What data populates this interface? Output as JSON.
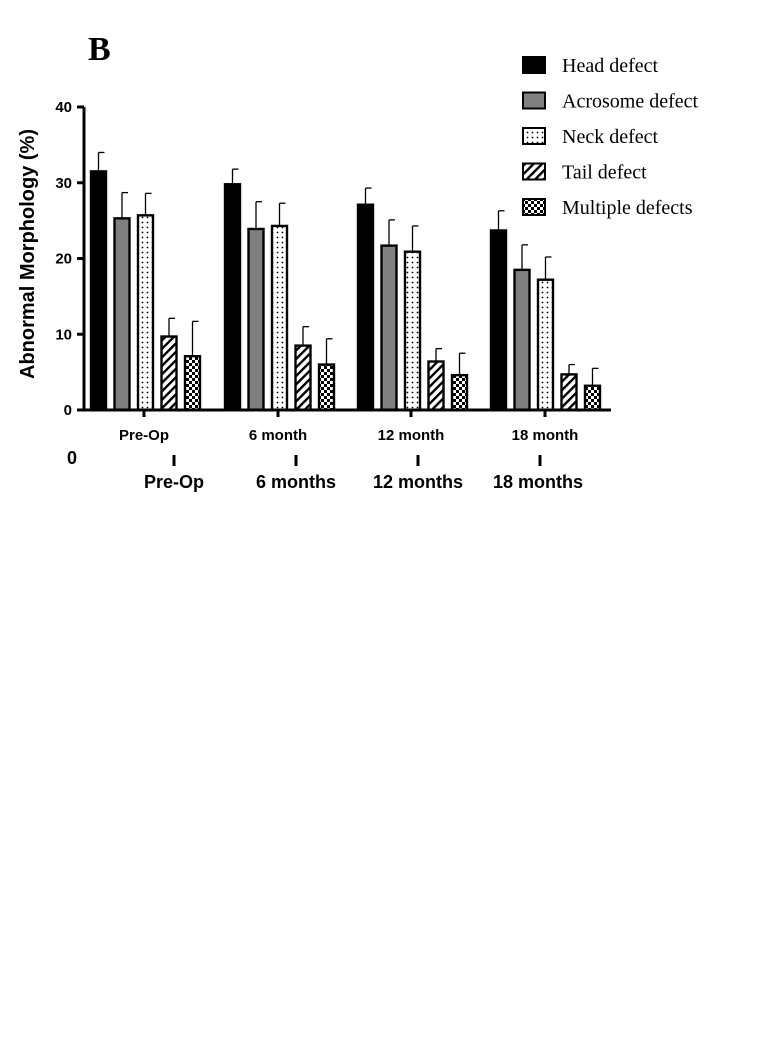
{
  "panel_label": "B",
  "colors": {
    "head": "#000000",
    "acrosome": "#808080",
    "outline": "#000000",
    "background": "#ffffff"
  },
  "secondary_axis": {
    "partial_tick_label": "0",
    "labels": [
      "Pre-Op",
      "6 months",
      "12 months",
      "18 months"
    ]
  },
  "chart_data": {
    "type": "bar",
    "title": "",
    "xlabel": "",
    "ylabel": "Abnormal Morphology (%)",
    "ylim": [
      0,
      40
    ],
    "yticks": [
      "0",
      "10",
      "20",
      "30",
      "40"
    ],
    "categories": [
      "Pre-Op",
      "6 month",
      "12 month",
      "18 month"
    ],
    "legend_position": "top-right",
    "series": [
      {
        "name": "Head defect",
        "pattern": "solid-black",
        "values": [
          31.5,
          29.8,
          27.1,
          23.7
        ],
        "errors": [
          2.5,
          2.0,
          2.2,
          2.6
        ]
      },
      {
        "name": "Acrosome defect",
        "pattern": "solid-gray",
        "values": [
          25.3,
          23.9,
          21.7,
          18.5
        ],
        "errors": [
          3.4,
          3.6,
          3.4,
          3.3
        ]
      },
      {
        "name": "Neck defect",
        "pattern": "dots",
        "values": [
          25.7,
          24.3,
          20.9,
          17.2
        ],
        "errors": [
          2.9,
          3.0,
          3.4,
          3.0
        ]
      },
      {
        "name": "Tail defect",
        "pattern": "diagonal-stripes",
        "values": [
          9.7,
          8.5,
          6.4,
          4.7
        ],
        "errors": [
          2.4,
          2.5,
          1.7,
          1.3
        ]
      },
      {
        "name": "Multiple defects",
        "pattern": "checker",
        "values": [
          7.1,
          6.0,
          4.6,
          3.2
        ],
        "errors": [
          4.6,
          3.4,
          2.9,
          2.3
        ]
      }
    ]
  }
}
